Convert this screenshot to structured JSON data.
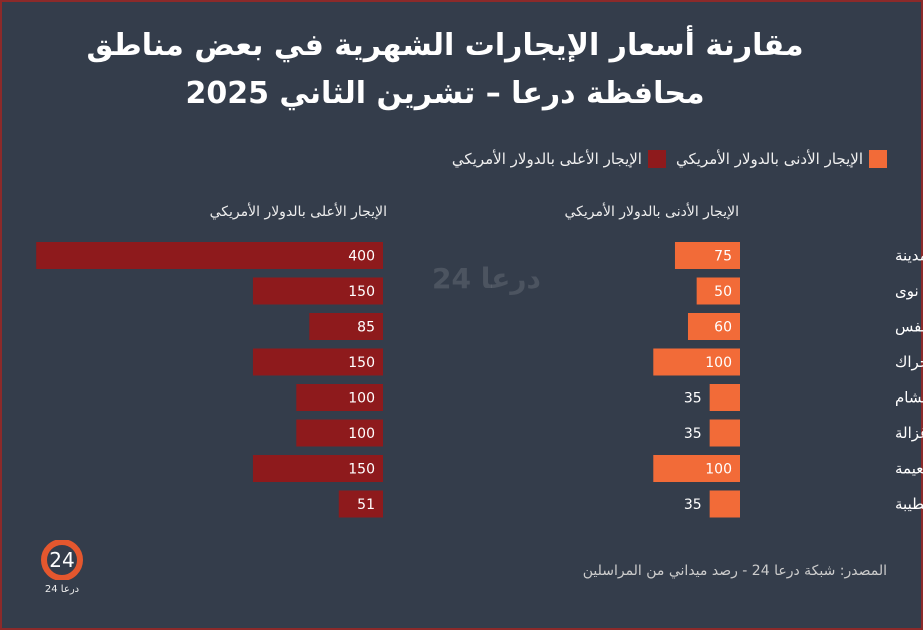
{
  "title_line1": "مقارنة أسعار الإيجارات الشهرية في بعض مناطق",
  "title_line2": "محافظة درعا – تشرين الثاني 2025",
  "source": "المصدر: شبكة درعا 24 - رصد ميداني من المراسلين",
  "logo_text": "درعا 24",
  "watermark": "درعا 24",
  "chart_data": {
    "type": "bar",
    "orientation": "horizontal",
    "categories": [
      "درعا المدينة",
      "نوى",
      "طفس",
      "الحراك",
      "بصرى الشام",
      "خربة غزالة",
      "النعيمة",
      "معربة/الجيزة/الطيبة"
    ],
    "series": [
      {
        "name": "الإيجار الأدنى بالدولار الأمريكي",
        "color": "#f26b38",
        "values": [
          75,
          50,
          60,
          100,
          35,
          35,
          100,
          35
        ]
      },
      {
        "name": "الإيجار الأعلى بالدولار الأمريكي",
        "color": "#8e1a1c",
        "values": [
          400,
          150,
          85,
          150,
          100,
          100,
          150,
          51
        ]
      }
    ],
    "panel_titles": [
      "الإيجار الأدنى بالدولار الأمريكي",
      "الإيجار الأعلى بالدولار الأمريكي"
    ],
    "legend_position": "top-right",
    "grid": false
  }
}
